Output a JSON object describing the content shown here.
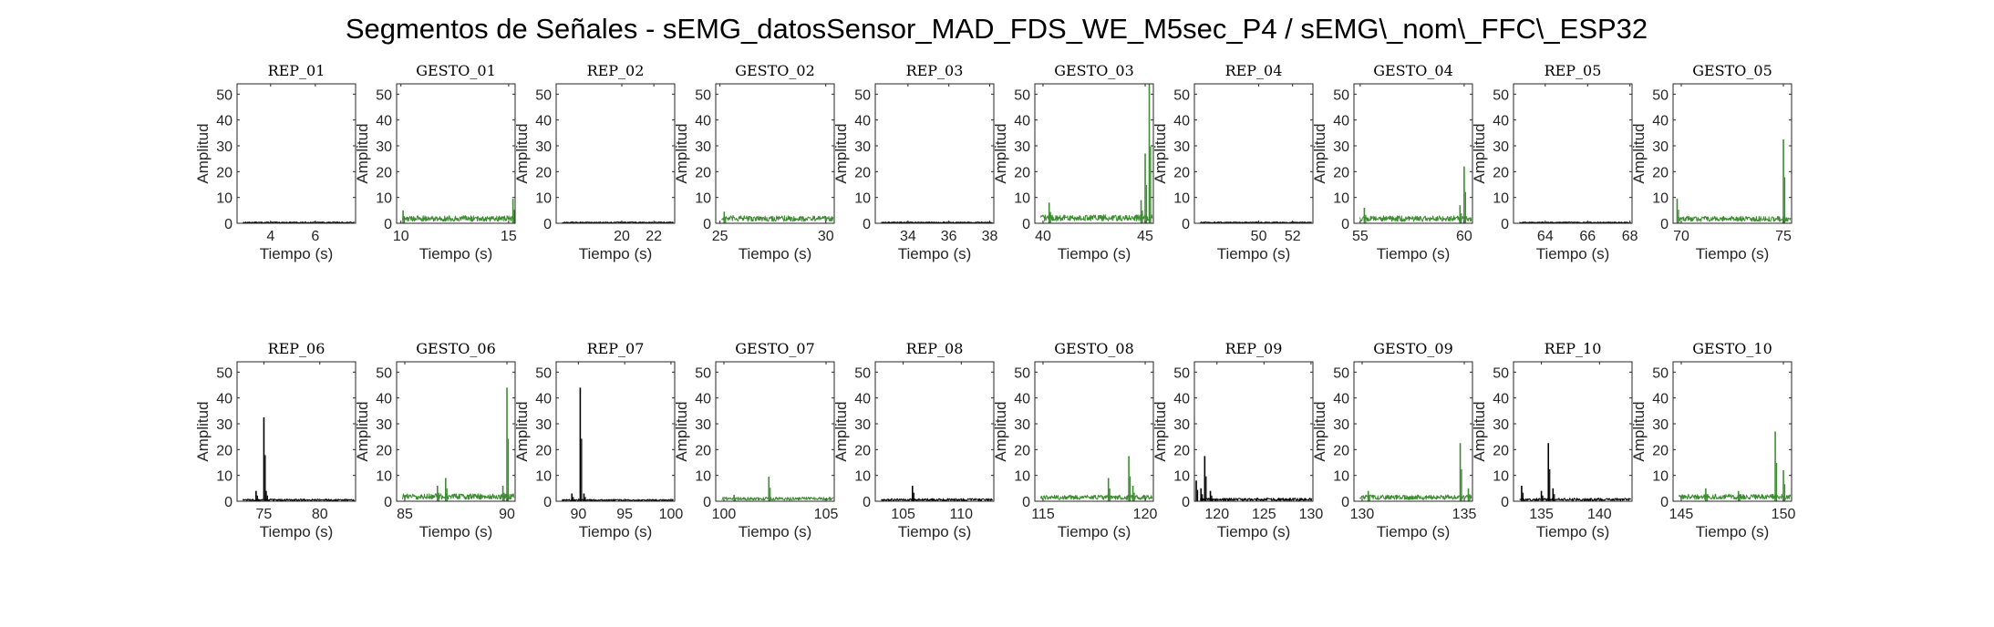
{
  "figure": {
    "title": "Segmentos de Señales - sEMG_datosSensor_MAD_FDS_WE_M5sec_P4 / sEMG\\_nom\\_FFC\\_ESP32"
  },
  "colors": {
    "rep": "#000000",
    "gesto": "#3d8c32"
  },
  "chart_data": [
    {
      "type": "line",
      "title": "REP_01",
      "xlabel": "Tiempo (s)",
      "ylabel": "Amplitud",
      "xlim": [
        2.5,
        7.8
      ],
      "ylim": [
        0,
        54
      ],
      "xticks": [
        4,
        6
      ],
      "yticks": [
        0,
        10,
        20,
        30,
        40,
        50
      ],
      "kind": "rep",
      "base": 0.3,
      "noise": 0.4,
      "spikes": []
    },
    {
      "type": "line",
      "title": "GESTO_01",
      "xlabel": "Tiempo (s)",
      "ylabel": "Amplitud",
      "xlim": [
        9.8,
        15.3
      ],
      "ylim": [
        0,
        54
      ],
      "xticks": [
        10,
        15
      ],
      "yticks": [
        0,
        10,
        20,
        30,
        40,
        50
      ],
      "kind": "gesto",
      "base": 1.8,
      "noise": 2.2,
      "spikes": [
        [
          10.1,
          5
        ],
        [
          15.2,
          9.5
        ]
      ]
    },
    {
      "type": "line",
      "title": "REP_02",
      "xlabel": "Tiempo (s)",
      "ylabel": "Amplitud",
      "xlim": [
        15.9,
        23.3
      ],
      "ylim": [
        0,
        54
      ],
      "xticks": [
        20,
        22
      ],
      "yticks": [
        0,
        10,
        20,
        30,
        40,
        50
      ],
      "kind": "rep",
      "base": 0.3,
      "noise": 0.4,
      "spikes": []
    },
    {
      "type": "line",
      "title": "GESTO_02",
      "xlabel": "Tiempo (s)",
      "ylabel": "Amplitud",
      "xlim": [
        24.8,
        30.4
      ],
      "ylim": [
        0,
        54
      ],
      "xticks": [
        25,
        30
      ],
      "yticks": [
        0,
        10,
        20,
        30,
        40,
        50
      ],
      "kind": "gesto",
      "base": 1.8,
      "noise": 2.2,
      "spikes": [
        [
          25.2,
          4.5
        ]
      ]
    },
    {
      "type": "line",
      "title": "REP_03",
      "xlabel": "Tiempo (s)",
      "ylabel": "Amplitud",
      "xlim": [
        32.4,
        38.2
      ],
      "ylim": [
        0,
        54
      ],
      "xticks": [
        34,
        36,
        38
      ],
      "yticks": [
        0,
        10,
        20,
        30,
        40,
        50
      ],
      "kind": "rep",
      "base": 0.3,
      "noise": 0.4,
      "spikes": []
    },
    {
      "type": "line",
      "title": "GESTO_03",
      "xlabel": "Tiempo (s)",
      "ylabel": "Amplitud",
      "xlim": [
        39.6,
        45.4
      ],
      "ylim": [
        0,
        54
      ],
      "xticks": [
        40,
        45
      ],
      "yticks": [
        0,
        10,
        20,
        30,
        40,
        50
      ],
      "kind": "gesto",
      "base": 2.0,
      "noise": 2.5,
      "spikes": [
        [
          40.3,
          8
        ],
        [
          44.8,
          9
        ],
        [
          45.0,
          27
        ],
        [
          45.2,
          54
        ]
      ]
    },
    {
      "type": "line",
      "title": "REP_04",
      "xlabel": "Tiempo (s)",
      "ylabel": "Amplitud",
      "xlim": [
        46.2,
        53.2
      ],
      "ylim": [
        0,
        54
      ],
      "xticks": [
        50,
        52
      ],
      "yticks": [
        0,
        10,
        20,
        30,
        40,
        50
      ],
      "kind": "rep",
      "base": 0.3,
      "noise": 0.4,
      "spikes": []
    },
    {
      "type": "line",
      "title": "GESTO_04",
      "xlabel": "Tiempo (s)",
      "ylabel": "Amplitud",
      "xlim": [
        54.7,
        60.4
      ],
      "ylim": [
        0,
        54
      ],
      "xticks": [
        55,
        60
      ],
      "yticks": [
        0,
        10,
        20,
        30,
        40,
        50
      ],
      "kind": "gesto",
      "base": 1.8,
      "noise": 2.2,
      "spikes": [
        [
          55.2,
          6
        ],
        [
          59.8,
          7
        ],
        [
          60.0,
          22
        ]
      ]
    },
    {
      "type": "line",
      "title": "REP_05",
      "xlabel": "Tiempo (s)",
      "ylabel": "Amplitud",
      "xlim": [
        62.5,
        68.1
      ],
      "ylim": [
        0,
        54
      ],
      "xticks": [
        64,
        66,
        68
      ],
      "yticks": [
        0,
        10,
        20,
        30,
        40,
        50
      ],
      "kind": "rep",
      "base": 0.3,
      "noise": 0.4,
      "spikes": []
    },
    {
      "type": "line",
      "title": "GESTO_05",
      "xlabel": "Tiempo (s)",
      "ylabel": "Amplitud",
      "xlim": [
        69.6,
        75.4
      ],
      "ylim": [
        0,
        54
      ],
      "xticks": [
        70,
        75
      ],
      "yticks": [
        0,
        10,
        20,
        30,
        40,
        50
      ],
      "kind": "gesto",
      "base": 1.8,
      "noise": 2.0,
      "spikes": [
        [
          69.8,
          9.5
        ],
        [
          75.0,
          32.5
        ]
      ]
    },
    {
      "type": "line",
      "title": "REP_06",
      "xlabel": "Tiempo (s)",
      "ylabel": "Amplitud",
      "xlim": [
        72.6,
        83.2
      ],
      "ylim": [
        0,
        54
      ],
      "xticks": [
        75,
        80
      ],
      "yticks": [
        0,
        10,
        20,
        30,
        40,
        50
      ],
      "kind": "rep",
      "base": 0.4,
      "noise": 0.7,
      "spikes": [
        [
          74.3,
          4
        ],
        [
          75.0,
          32.5
        ],
        [
          75.2,
          4
        ]
      ]
    },
    {
      "type": "line",
      "title": "GESTO_06",
      "xlabel": "Tiempo (s)",
      "ylabel": "Amplitud",
      "xlim": [
        84.6,
        90.4
      ],
      "ylim": [
        0,
        54
      ],
      "xticks": [
        85,
        90
      ],
      "yticks": [
        0,
        10,
        20,
        30,
        40,
        50
      ],
      "kind": "gesto",
      "base": 1.8,
      "noise": 2.2,
      "spikes": [
        [
          86.6,
          6
        ],
        [
          87.0,
          9
        ],
        [
          89.8,
          6
        ],
        [
          90.0,
          44
        ]
      ]
    },
    {
      "type": "line",
      "title": "REP_07",
      "xlabel": "Tiempo (s)",
      "ylabel": "Amplitud",
      "xlim": [
        87.6,
        100.4
      ],
      "ylim": [
        0,
        54
      ],
      "xticks": [
        90,
        95,
        100
      ],
      "yticks": [
        0,
        10,
        20,
        30,
        40,
        50
      ],
      "kind": "rep",
      "base": 0.4,
      "noise": 0.6,
      "spikes": [
        [
          89.3,
          3
        ],
        [
          90.2,
          44
        ],
        [
          90.6,
          3
        ]
      ]
    },
    {
      "type": "line",
      "title": "GESTO_07",
      "xlabel": "Tiempo (s)",
      "ylabel": "Amplitud",
      "xlim": [
        99.6,
        105.4
      ],
      "ylim": [
        0,
        54
      ],
      "xticks": [
        100,
        105
      ],
      "yticks": [
        0,
        10,
        20,
        30,
        40,
        50
      ],
      "kind": "gesto",
      "base": 1.0,
      "noise": 1.2,
      "spikes": [
        [
          100.5,
          2.5
        ],
        [
          102.2,
          9.5
        ]
      ]
    },
    {
      "type": "line",
      "title": "REP_08",
      "xlabel": "Tiempo (s)",
      "ylabel": "Amplitud",
      "xlim": [
        102.6,
        112.8
      ],
      "ylim": [
        0,
        54
      ],
      "xticks": [
        105,
        110
      ],
      "yticks": [
        0,
        10,
        20,
        30,
        40,
        50
      ],
      "kind": "rep",
      "base": 0.4,
      "noise": 0.9,
      "spikes": [
        [
          105.8,
          6
        ]
      ]
    },
    {
      "type": "line",
      "title": "GESTO_08",
      "xlabel": "Tiempo (s)",
      "ylabel": "Amplitud",
      "xlim": [
        114.6,
        120.4
      ],
      "ylim": [
        0,
        54
      ],
      "xticks": [
        115,
        120
      ],
      "yticks": [
        0,
        10,
        20,
        30,
        40,
        50
      ],
      "kind": "gesto",
      "base": 1.5,
      "noise": 1.8,
      "spikes": [
        [
          118.2,
          9
        ],
        [
          119.2,
          17.5
        ],
        [
          119.4,
          6
        ]
      ]
    },
    {
      "type": "line",
      "title": "REP_09",
      "xlabel": "Tiempo (s)",
      "ylabel": "Amplitud",
      "xlim": [
        117.6,
        130.2
      ],
      "ylim": [
        0,
        54
      ],
      "xticks": [
        120,
        125,
        130
      ],
      "yticks": [
        0,
        10,
        20,
        30,
        40,
        50
      ],
      "kind": "rep",
      "base": 0.5,
      "noise": 1.0,
      "spikes": [
        [
          117.8,
          8
        ],
        [
          118.3,
          5
        ],
        [
          118.7,
          17.5
        ],
        [
          119.3,
          4
        ]
      ]
    },
    {
      "type": "line",
      "title": "GESTO_09",
      "xlabel": "Tiempo (s)",
      "ylabel": "Amplitud",
      "xlim": [
        129.6,
        135.4
      ],
      "ylim": [
        0,
        54
      ],
      "xticks": [
        130,
        135
      ],
      "yticks": [
        0,
        10,
        20,
        30,
        40,
        50
      ],
      "kind": "gesto",
      "base": 1.6,
      "noise": 1.8,
      "spikes": [
        [
          130.3,
          4
        ],
        [
          134.8,
          22.5
        ],
        [
          135.2,
          5
        ]
      ]
    },
    {
      "type": "line",
      "title": "REP_10",
      "xlabel": "Tiempo (s)",
      "ylabel": "Amplitud",
      "xlim": [
        132.6,
        142.8
      ],
      "ylim": [
        0,
        54
      ],
      "xticks": [
        135,
        140
      ],
      "yticks": [
        0,
        10,
        20,
        30,
        40,
        50
      ],
      "kind": "rep",
      "base": 0.5,
      "noise": 1.0,
      "spikes": [
        [
          133.3,
          6
        ],
        [
          135.0,
          4
        ],
        [
          135.6,
          22.5
        ],
        [
          136.0,
          5
        ]
      ]
    },
    {
      "type": "line",
      "title": "GESTO_10",
      "xlabel": "Tiempo (s)",
      "ylabel": "Amplitud",
      "xlim": [
        144.6,
        150.4
      ],
      "ylim": [
        0,
        54
      ],
      "xticks": [
        145,
        150
      ],
      "yticks": [
        0,
        10,
        20,
        30,
        40,
        50
      ],
      "kind": "gesto",
      "base": 1.8,
      "noise": 2.0,
      "spikes": [
        [
          146.2,
          5
        ],
        [
          147.8,
          4
        ],
        [
          149.6,
          27
        ],
        [
          150.0,
          12
        ]
      ]
    }
  ]
}
